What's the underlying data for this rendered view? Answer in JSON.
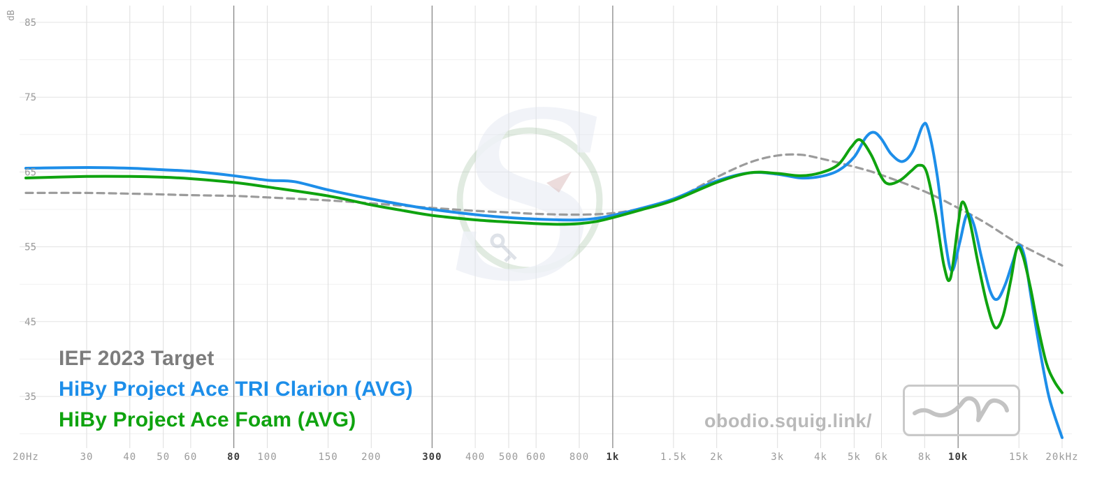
{
  "chart_data": {
    "type": "line",
    "title": "",
    "x_axis": {
      "scale": "log",
      "unit": "Hz",
      "min": 20,
      "max": 20000,
      "ticks": [
        {
          "f": 20,
          "label": "20Hz",
          "bold": false
        },
        {
          "f": 30,
          "label": "30",
          "bold": false
        },
        {
          "f": 40,
          "label": "40",
          "bold": false
        },
        {
          "f": 50,
          "label": "50",
          "bold": false
        },
        {
          "f": 60,
          "label": "60",
          "bold": false
        },
        {
          "f": 80,
          "label": "80",
          "bold": true
        },
        {
          "f": 100,
          "label": "100",
          "bold": false
        },
        {
          "f": 150,
          "label": "150",
          "bold": false
        },
        {
          "f": 200,
          "label": "200",
          "bold": false
        },
        {
          "f": 300,
          "label": "300",
          "bold": true
        },
        {
          "f": 400,
          "label": "400",
          "bold": false
        },
        {
          "f": 500,
          "label": "500",
          "bold": false
        },
        {
          "f": 600,
          "label": "600",
          "bold": false
        },
        {
          "f": 800,
          "label": "800",
          "bold": false
        },
        {
          "f": 1000,
          "label": "1k",
          "bold": true
        },
        {
          "f": 1500,
          "label": "1.5k",
          "bold": false
        },
        {
          "f": 2000,
          "label": "2k",
          "bold": false
        },
        {
          "f": 3000,
          "label": "3k",
          "bold": false
        },
        {
          "f": 4000,
          "label": "4k",
          "bold": false
        },
        {
          "f": 5000,
          "label": "5k",
          "bold": false
        },
        {
          "f": 6000,
          "label": "6k",
          "bold": false
        },
        {
          "f": 8000,
          "label": "8k",
          "bold": false
        },
        {
          "f": 10000,
          "label": "10k",
          "bold": true
        },
        {
          "f": 15000,
          "label": "15k",
          "bold": false
        },
        {
          "f": 20000,
          "label": "20kHz",
          "bold": false
        }
      ]
    },
    "y_axis": {
      "label": "dB",
      "min": 30,
      "max": 85,
      "ticks": [
        {
          "db": 85,
          "label": "85"
        },
        {
          "db": 75,
          "label": "75"
        },
        {
          "db": 65,
          "label": "65"
        },
        {
          "db": 55,
          "label": "55"
        },
        {
          "db": 45,
          "label": "45"
        },
        {
          "db": 35,
          "label": "35"
        }
      ]
    },
    "grid": true,
    "legend_position": "bottom-left",
    "series": [
      {
        "name": "IEF 2023 Target",
        "color": "#9b9b9b",
        "legend_color": "#7c7c7c",
        "style": "dashed",
        "points": [
          [
            20,
            62.2
          ],
          [
            30,
            62.2
          ],
          [
            40,
            62.1
          ],
          [
            50,
            62.0
          ],
          [
            60,
            61.9
          ],
          [
            80,
            61.8
          ],
          [
            100,
            61.6
          ],
          [
            150,
            61.2
          ],
          [
            200,
            60.8
          ],
          [
            300,
            60.2
          ],
          [
            400,
            59.8
          ],
          [
            500,
            59.6
          ],
          [
            600,
            59.4
          ],
          [
            800,
            59.3
          ],
          [
            1000,
            59.5
          ],
          [
            1200,
            60.1
          ],
          [
            1500,
            61.3
          ],
          [
            2000,
            64.3
          ],
          [
            2500,
            66.3
          ],
          [
            3000,
            67.2
          ],
          [
            3500,
            67.3
          ],
          [
            4000,
            66.8
          ],
          [
            5000,
            65.7
          ],
          [
            6000,
            64.6
          ],
          [
            8000,
            62.4
          ],
          [
            10000,
            60.2
          ],
          [
            12000,
            58.2
          ],
          [
            15000,
            55.4
          ],
          [
            20000,
            52.5
          ]
        ]
      },
      {
        "name": "HiBy Project Ace TRI Clarion (AVG)",
        "color": "#1d8ee9",
        "style": "solid",
        "points": [
          [
            20,
            65.5
          ],
          [
            30,
            65.6
          ],
          [
            40,
            65.5
          ],
          [
            50,
            65.3
          ],
          [
            60,
            65.1
          ],
          [
            80,
            64.5
          ],
          [
            100,
            63.9
          ],
          [
            120,
            63.7
          ],
          [
            150,
            62.6
          ],
          [
            200,
            61.4
          ],
          [
            250,
            60.6
          ],
          [
            300,
            60.0
          ],
          [
            400,
            59.3
          ],
          [
            500,
            58.9
          ],
          [
            600,
            58.7
          ],
          [
            700,
            58.6
          ],
          [
            800,
            58.6
          ],
          [
            900,
            58.8
          ],
          [
            1000,
            59.2
          ],
          [
            1200,
            60.1
          ],
          [
            1500,
            61.4
          ],
          [
            2000,
            63.8
          ],
          [
            2500,
            64.9
          ],
          [
            3000,
            64.7
          ],
          [
            3500,
            64.2
          ],
          [
            4000,
            64.4
          ],
          [
            4500,
            65.2
          ],
          [
            5000,
            67.0
          ],
          [
            5400,
            69.6
          ],
          [
            5700,
            70.3
          ],
          [
            6000,
            69.4
          ],
          [
            6400,
            67.4
          ],
          [
            6900,
            66.4
          ],
          [
            7400,
            67.8
          ],
          [
            7900,
            71.2
          ],
          [
            8200,
            70.6
          ],
          [
            8700,
            64.5
          ],
          [
            9200,
            55.5
          ],
          [
            9600,
            51.8
          ],
          [
            10100,
            55.5
          ],
          [
            10600,
            59.3
          ],
          [
            11100,
            58.0
          ],
          [
            11700,
            53.5
          ],
          [
            12400,
            49.0
          ],
          [
            13000,
            48.0
          ],
          [
            13700,
            50.0
          ],
          [
            14400,
            53.0
          ],
          [
            15000,
            55.2
          ],
          [
            15600,
            53.5
          ],
          [
            16300,
            48.0
          ],
          [
            17200,
            41.5
          ],
          [
            18200,
            35.5
          ],
          [
            19000,
            32.5
          ],
          [
            20000,
            29.5
          ]
        ]
      },
      {
        "name": "HiBy Project Ace Foam (AVG)",
        "color": "#0fa30f",
        "style": "solid",
        "points": [
          [
            20,
            64.2
          ],
          [
            30,
            64.4
          ],
          [
            40,
            64.4
          ],
          [
            50,
            64.3
          ],
          [
            60,
            64.1
          ],
          [
            80,
            63.6
          ],
          [
            100,
            63.0
          ],
          [
            150,
            61.8
          ],
          [
            200,
            60.6
          ],
          [
            250,
            59.8
          ],
          [
            300,
            59.2
          ],
          [
            400,
            58.6
          ],
          [
            500,
            58.3
          ],
          [
            600,
            58.1
          ],
          [
            700,
            58.0
          ],
          [
            800,
            58.1
          ],
          [
            900,
            58.4
          ],
          [
            1000,
            58.9
          ],
          [
            1200,
            59.9
          ],
          [
            1500,
            61.2
          ],
          [
            2000,
            63.6
          ],
          [
            2500,
            64.9
          ],
          [
            3000,
            64.8
          ],
          [
            3500,
            64.5
          ],
          [
            4000,
            64.9
          ],
          [
            4500,
            66.0
          ],
          [
            4900,
            68.3
          ],
          [
            5200,
            69.3
          ],
          [
            5600,
            67.3
          ],
          [
            6000,
            64.3
          ],
          [
            6300,
            63.4
          ],
          [
            6800,
            63.9
          ],
          [
            7300,
            65.1
          ],
          [
            7700,
            65.9
          ],
          [
            8100,
            65.0
          ],
          [
            8600,
            59.5
          ],
          [
            9100,
            52.5
          ],
          [
            9500,
            50.8
          ],
          [
            10000,
            58.0
          ],
          [
            10300,
            61.0
          ],
          [
            10800,
            58.5
          ],
          [
            11400,
            53.0
          ],
          [
            12100,
            47.5
          ],
          [
            12800,
            44.2
          ],
          [
            13500,
            45.8
          ],
          [
            14200,
            50.5
          ],
          [
            14800,
            54.8
          ],
          [
            15400,
            53.8
          ],
          [
            16200,
            49.5
          ],
          [
            17000,
            44.5
          ],
          [
            18000,
            39.5
          ],
          [
            19000,
            37.0
          ],
          [
            20000,
            35.5
          ]
        ]
      }
    ]
  },
  "watermark": {
    "letter": "S"
  },
  "footer": {
    "site_text": "obodio.squig.link/"
  }
}
